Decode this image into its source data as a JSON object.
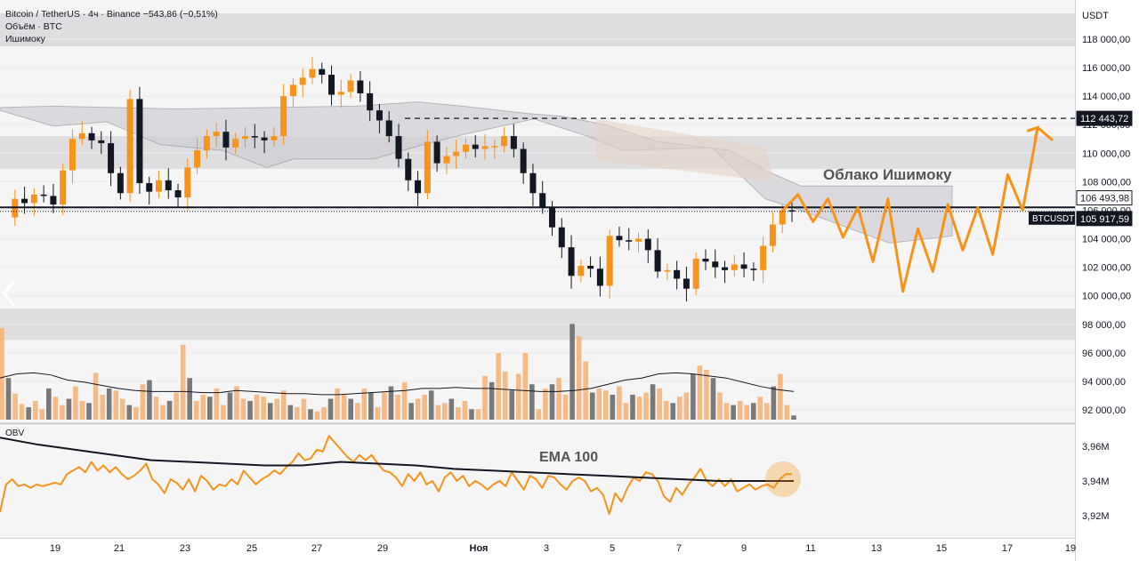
{
  "header": {
    "symbol_line": "Bitcoin / TetherUS · 4ч · Binance",
    "change": "−543,86 (−0,51%)",
    "volume_line": "Объём · BTC",
    "ichimoku_line": "Ишимоку"
  },
  "currency": "USDT",
  "annotations": {
    "cloud_label": "Облако Ишимоку",
    "ema_label": "EMA 100",
    "obv_label": "OBV"
  },
  "price_tags": [
    {
      "label": "112 443,72",
      "value": 112443.72,
      "style": "dark"
    },
    {
      "label": "106 493,98",
      "value": 106493.98,
      "style": "light"
    },
    {
      "label": "BTCUSDT",
      "value": 105917.59,
      "style": "dark-symbol"
    },
    {
      "label": "105 917,59",
      "value": 105917.59,
      "style": "dark"
    }
  ],
  "colors": {
    "up": "#f7931a",
    "down": "#131722",
    "vol_up": "#f5b47a",
    "vol_down": "#6b6b6b",
    "zone": "#d9d9dc",
    "cloud": "#cfcfd4",
    "projection": "#f7931a"
  },
  "chart_data": [
    {
      "type": "candlestick",
      "title": "Bitcoin / TetherUS · 4ч · Binance",
      "ylabel": "USDT",
      "ylim": [
        91000,
        120000
      ],
      "y_ticks": [
        92000,
        94000,
        96000,
        98000,
        100000,
        102000,
        104000,
        106000,
        108000,
        110000,
        112000,
        114000,
        116000,
        118000
      ],
      "y_tick_labels": [
        "92 000,00",
        "94 000,00",
        "96 000,00",
        "98 000,00",
        "100 000,00",
        "102 000,00",
        "104 000,00",
        "106 000,00",
        "108 000,00",
        "110 000,00",
        "112 000,00",
        "114 000,00",
        "116 000,00",
        "118 000,00"
      ],
      "x_tick_labels": [
        "19",
        "21",
        "23",
        "25",
        "27",
        "29",
        "Ноя",
        "3",
        "5",
        "7",
        "9",
        "11",
        "13",
        "15",
        "17",
        "19"
      ],
      "key_levels": {
        "horizontal_support": 106200,
        "target_dashed": 112443.72,
        "resistance_zones": [
          [
            117500,
            119800
          ],
          [
            108900,
            111200
          ]
        ],
        "support_zone": [
          96900,
          99100
        ]
      },
      "close_path": [
        105500,
        106800,
        106500,
        107100,
        107000,
        106400,
        108800,
        111000,
        111400,
        110900,
        110700,
        108600,
        107200,
        113800,
        107900,
        107300,
        108100,
        107400,
        106900,
        109000,
        110200,
        111200,
        111500,
        110400,
        111000,
        111200,
        111100,
        110900,
        111200,
        114000,
        114800,
        115300,
        115900,
        115500,
        114100,
        114300,
        115100,
        114200,
        113000,
        112300,
        111200,
        109600,
        108100,
        107200,
        110800,
        109300,
        109800,
        110100,
        110600,
        110300,
        110500,
        110500,
        111200,
        110300,
        108600,
        107200,
        106200,
        104800,
        103400,
        101400,
        102100,
        101900,
        100700,
        104200,
        103900,
        103800,
        104000,
        103200,
        101700,
        101800,
        101200,
        100500,
        102600,
        102400,
        102000,
        101800,
        102200,
        101900,
        101800,
        103500,
        105000,
        106000,
        105917.59
      ],
      "projection_path": [
        106000,
        107100,
        105200,
        106800,
        104100,
        106200,
        102400,
        106800,
        100300,
        104700,
        101700,
        106400,
        103200,
        106200,
        102900,
        108500,
        106000,
        111800,
        110900
      ],
      "volume_ylim": [
        0,
        100
      ],
      "volume_values": [
        88,
        40,
        25,
        15,
        12,
        18,
        10,
        30,
        22,
        14,
        20,
        32,
        18,
        16,
        45,
        24,
        30,
        28,
        20,
        14,
        12,
        34,
        38,
        22,
        14,
        18,
        26,
        72,
        40,
        18,
        24,
        22,
        30,
        14,
        26,
        32,
        20,
        18,
        24,
        22,
        16,
        20,
        28,
        14,
        12,
        20,
        10,
        8,
        12,
        20,
        30,
        24,
        20,
        16,
        30,
        26,
        12,
        26,
        32,
        24,
        36,
        16,
        20,
        24,
        28,
        14,
        16,
        20,
        12,
        18,
        10,
        10,
        42,
        36,
        64,
        46,
        28,
        44,
        64,
        34,
        10,
        30,
        34,
        40,
        24,
        92,
        80,
        56,
        26,
        30,
        28,
        24,
        32,
        16,
        24,
        22,
        26,
        34,
        30,
        18,
        16,
        22,
        26,
        44,
        52,
        48,
        40,
        26,
        16,
        14,
        18,
        14,
        16,
        22,
        16,
        32,
        44,
        14,
        4
      ],
      "volume_ma": [
        40,
        44,
        45,
        43,
        38,
        36,
        33,
        30,
        28,
        27,
        27,
        27,
        26,
        26,
        28,
        27,
        26,
        25,
        25,
        24,
        24,
        25,
        26,
        27,
        28,
        30,
        30,
        31,
        30,
        30,
        29,
        28,
        27,
        27,
        28,
        30,
        34,
        38,
        40,
        44,
        45,
        44,
        42,
        40,
        36,
        32,
        29,
        27
      ],
      "obv_ylim": [
        3.91,
        3.97
      ],
      "obv_ticks": [
        3.92,
        3.94,
        3.96
      ],
      "obv_tick_labels": [
        "3,92M",
        "3,94M",
        "3,96M"
      ],
      "obv_values": [
        3.922,
        3.938,
        3.941,
        3.937,
        3.938,
        3.936,
        3.938,
        3.937,
        3.938,
        3.939,
        3.938,
        3.944,
        3.946,
        3.948,
        3.945,
        3.951,
        3.946,
        3.949,
        3.945,
        3.948,
        3.944,
        3.941,
        3.943,
        3.946,
        3.95,
        3.941,
        3.938,
        3.933,
        3.941,
        3.939,
        3.935,
        3.941,
        3.934,
        3.943,
        3.94,
        3.935,
        3.938,
        3.937,
        3.941,
        3.938,
        3.946,
        3.942,
        3.938,
        3.941,
        3.943,
        3.946,
        3.944,
        3.948,
        3.951,
        3.956,
        3.952,
        3.953,
        3.958,
        3.957,
        3.966,
        3.962,
        3.958,
        3.954,
        3.951,
        3.955,
        3.952,
        3.955,
        3.95,
        3.946,
        3.945,
        3.942,
        3.937,
        3.944,
        3.94,
        3.945,
        3.938,
        3.94,
        3.934,
        3.942,
        3.945,
        3.94,
        3.943,
        3.937,
        3.94,
        3.938,
        3.935,
        3.938,
        3.94,
        3.937,
        3.945,
        3.94,
        3.935,
        3.943,
        3.941,
        3.936,
        3.943,
        3.942,
        3.938,
        3.935,
        3.94,
        3.942,
        3.94,
        3.934,
        3.936,
        3.932,
        3.921,
        3.933,
        3.928,
        3.936,
        3.942,
        3.94,
        3.945,
        3.944,
        3.94,
        3.931,
        3.928,
        3.936,
        3.932,
        3.938,
        3.942,
        3.947,
        3.94,
        3.937,
        3.941,
        3.937,
        3.941,
        3.934,
        3.936,
        3.938,
        3.935,
        3.937,
        3.938,
        3.936,
        3.941,
        3.944,
        3.944
      ],
      "ema100_values": [
        3.965,
        3.961,
        3.958,
        3.955,
        3.952,
        3.951,
        3.95,
        3.949,
        3.949,
        3.951,
        3.95,
        3.949,
        3.947,
        3.946,
        3.945,
        3.944,
        3.943,
        3.942,
        3.941,
        3.94,
        3.94,
        3.94
      ]
    }
  ]
}
